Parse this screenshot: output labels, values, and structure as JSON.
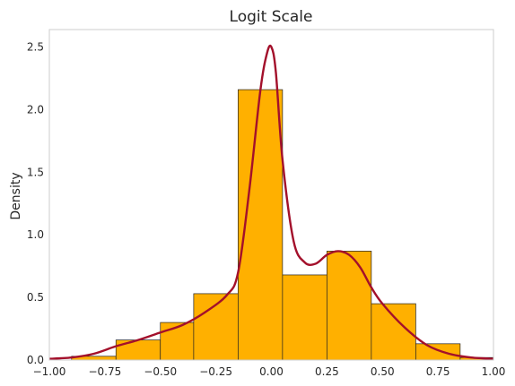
{
  "chart_data": {
    "type": "histogram",
    "title": "Logit Scale",
    "xlabel": "",
    "ylabel": "Density",
    "xlim": [
      -1.0,
      1.0
    ],
    "ylim": [
      0,
      2.64
    ],
    "grid": false,
    "xticks": [
      "−1.00",
      "−0.75",
      "−0.50",
      "−0.25",
      "0.00",
      "0.25",
      "0.50",
      "0.75",
      "1.00"
    ],
    "yticks": [
      "0.0",
      "0.5",
      "1.0",
      "1.5",
      "2.0",
      "2.5"
    ],
    "bins": [
      {
        "x0": -0.9,
        "x1": -0.7,
        "density": 0.03
      },
      {
        "x0": -0.7,
        "x1": -0.5,
        "density": 0.16
      },
      {
        "x0": -0.5,
        "x1": -0.35,
        "density": 0.3
      },
      {
        "x0": -0.35,
        "x1": -0.15,
        "density": 0.53
      },
      {
        "x0": -0.15,
        "x1": 0.05,
        "density": 2.16
      },
      {
        "x0": 0.05,
        "x1": 0.25,
        "density": 0.68
      },
      {
        "x0": 0.25,
        "x1": 0.45,
        "density": 0.87
      },
      {
        "x0": 0.45,
        "x1": 0.65,
        "density": 0.45
      },
      {
        "x0": 0.65,
        "x1": 0.85,
        "density": 0.13
      },
      {
        "x0": 0.85,
        "x1": 1.0,
        "density": 0.02
      }
    ],
    "kde": {
      "x": [
        -1.0,
        -0.9,
        -0.8,
        -0.7,
        -0.6,
        -0.5,
        -0.4,
        -0.3,
        -0.2,
        -0.15,
        -0.1,
        -0.05,
        -0.02,
        0.0,
        0.02,
        0.05,
        0.1,
        0.15,
        0.2,
        0.25,
        0.3,
        0.35,
        0.4,
        0.45,
        0.5,
        0.6,
        0.7,
        0.8,
        0.9,
        1.0
      ],
      "y": [
        0.01,
        0.02,
        0.05,
        0.11,
        0.16,
        0.22,
        0.28,
        0.38,
        0.52,
        0.7,
        1.35,
        2.15,
        2.45,
        2.5,
        2.3,
        1.6,
        0.95,
        0.78,
        0.77,
        0.84,
        0.87,
        0.84,
        0.74,
        0.58,
        0.45,
        0.26,
        0.12,
        0.05,
        0.02,
        0.01
      ]
    },
    "colors": {
      "bar_fill": "#ffb000",
      "bar_edge": "#222222",
      "kde_line": "#a3102b",
      "spine": "#cccccc"
    }
  }
}
